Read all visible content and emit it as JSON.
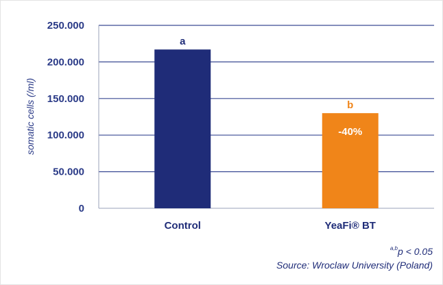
{
  "chart_data": {
    "type": "bar",
    "categories": [
      "Control",
      "YeaFi® BT"
    ],
    "values": [
      217000,
      130000
    ],
    "ylabel": "somatic cells (/ml)",
    "xlabel": "",
    "ylim": [
      0,
      250000
    ],
    "yticks": [
      0,
      50000,
      100000,
      150000,
      200000,
      250000
    ],
    "ytick_labels": [
      "0",
      "50.000",
      "100.000",
      "150.000",
      "200.000",
      "250.000"
    ],
    "bar_colors": [
      "#1f2c78",
      "#f08519"
    ],
    "significance_letters": [
      "a",
      "b"
    ],
    "bar_annotations": [
      "",
      "-40%"
    ],
    "grid": true
  },
  "footnote": {
    "sig_sup": "a,b",
    "sig_text": "p < 0.05",
    "source": "Source: Wroclaw University (Poland)"
  }
}
